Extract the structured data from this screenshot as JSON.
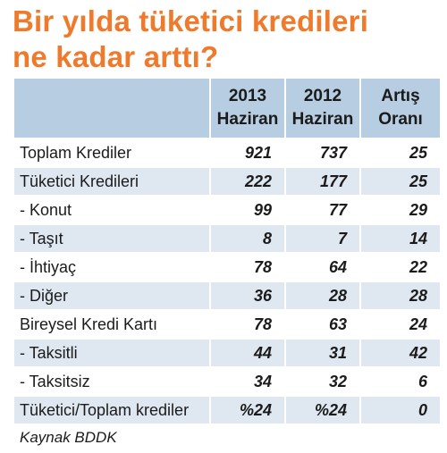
{
  "title_line1": "Bir yılda tüketici kredileri",
  "title_line2": "ne kadar arttı?",
  "chart_data": {
    "type": "table",
    "columns": [
      {
        "line1": "",
        "line2": ""
      },
      {
        "line1": "2013",
        "line2": "Haziran"
      },
      {
        "line1": "2012",
        "line2": "Haziran"
      },
      {
        "line1": "Artış",
        "line2": "Oranı"
      }
    ],
    "rows": [
      {
        "label": "Toplam Krediler",
        "values": [
          "921",
          "737",
          "25"
        ]
      },
      {
        "label": "Tüketici Kredileri",
        "values": [
          "222",
          "177",
          "25"
        ]
      },
      {
        "label": "- Konut",
        "values": [
          "99",
          "77",
          "29"
        ]
      },
      {
        "label": "- Taşıt",
        "values": [
          "8",
          "7",
          "14"
        ]
      },
      {
        "label": "- İhtiyaç",
        "values": [
          "78",
          "64",
          "22"
        ]
      },
      {
        "label": "- Diğer",
        "values": [
          "36",
          "28",
          "28"
        ]
      },
      {
        "label": "Bireysel Kredi Kartı",
        "values": [
          "78",
          "63",
          "24"
        ]
      },
      {
        "label": "- Taksitli",
        "values": [
          "44",
          "31",
          "42"
        ]
      },
      {
        "label": "- Taksitsiz",
        "values": [
          "34",
          "32",
          "6"
        ]
      },
      {
        "label": "Tüketici/Toplam krediler",
        "values": [
          "%24",
          "%24",
          "0"
        ]
      }
    ]
  },
  "source": "Kaynak BDDK",
  "colors": {
    "title": "#f07a2b",
    "header_bg": "#b7cde2",
    "stripe_bg": "#dfe7f1"
  }
}
